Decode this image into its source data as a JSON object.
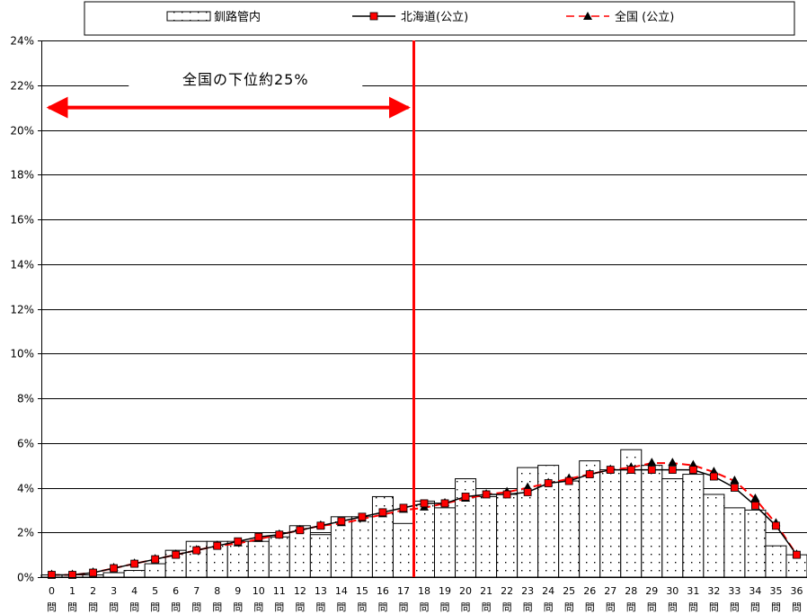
{
  "chart_data": {
    "type": "bar",
    "title": "",
    "xlabel": "",
    "ylabel": "",
    "ylim": [
      0,
      24
    ],
    "y_ticks": [
      "0%",
      "2%",
      "4%",
      "6%",
      "8%",
      "10%",
      "12%",
      "14%",
      "16%",
      "18%",
      "20%",
      "22%",
      "24%"
    ],
    "grid": true,
    "legend_position": "top",
    "categories": [
      "0",
      "1",
      "2",
      "3",
      "4",
      "5",
      "6",
      "7",
      "8",
      "9",
      "10",
      "11",
      "12",
      "13",
      "14",
      "15",
      "16",
      "17",
      "18",
      "19",
      "20",
      "21",
      "22",
      "23",
      "24",
      "25",
      "26",
      "27",
      "28",
      "29",
      "30",
      "31",
      "32",
      "33",
      "34",
      "35",
      "36"
    ],
    "category_suffix": "問",
    "series": [
      {
        "name": "釧路管内",
        "kind": "bar",
        "values": [
          0.1,
          0.1,
          0.1,
          0.2,
          0.3,
          0.6,
          1.2,
          1.6,
          1.6,
          1.6,
          1.6,
          1.8,
          2.3,
          1.9,
          2.7,
          2.7,
          3.6,
          2.4,
          3.4,
          3.1,
          4.4,
          3.6,
          3.7,
          4.9,
          5.0,
          4.3,
          5.2,
          4.8,
          5.7,
          5.0,
          4.4,
          4.6,
          3.7,
          3.1,
          3.0,
          1.4,
          1.0
        ]
      },
      {
        "name": "北海道(公立)",
        "kind": "line",
        "marker": "x-square",
        "values": [
          0.1,
          0.1,
          0.2,
          0.4,
          0.6,
          0.8,
          1.0,
          1.2,
          1.4,
          1.6,
          1.8,
          1.9,
          2.1,
          2.3,
          2.5,
          2.7,
          2.9,
          3.1,
          3.3,
          3.3,
          3.6,
          3.7,
          3.7,
          3.8,
          4.2,
          4.3,
          4.6,
          4.8,
          4.8,
          4.8,
          4.8,
          4.8,
          4.5,
          4.0,
          3.2,
          2.3,
          1.0
        ]
      },
      {
        "name": "全国 (公立)",
        "kind": "line",
        "marker": "triangle",
        "dashed": true,
        "values": [
          0.1,
          0.1,
          0.2,
          0.4,
          0.6,
          0.8,
          1.0,
          1.2,
          1.4,
          1.5,
          1.7,
          1.9,
          2.1,
          2.3,
          2.4,
          2.6,
          2.8,
          3.0,
          3.1,
          3.3,
          3.5,
          3.7,
          3.8,
          4.0,
          4.2,
          4.4,
          4.6,
          4.8,
          4.9,
          5.1,
          5.1,
          5.0,
          4.7,
          4.3,
          3.5,
          2.4,
          1.0
        ]
      }
    ],
    "annotation": {
      "text": "全国の下位約25%",
      "marker_category": "17",
      "arrow_y": 21
    },
    "colors": {
      "bar_fill": "#ffffff",
      "hokkaido_line": "#000000",
      "hokkaido_marker": "#ff0000",
      "national_line": "#ff0000",
      "national_marker": "#000000",
      "annotation": "#ff0000"
    }
  }
}
